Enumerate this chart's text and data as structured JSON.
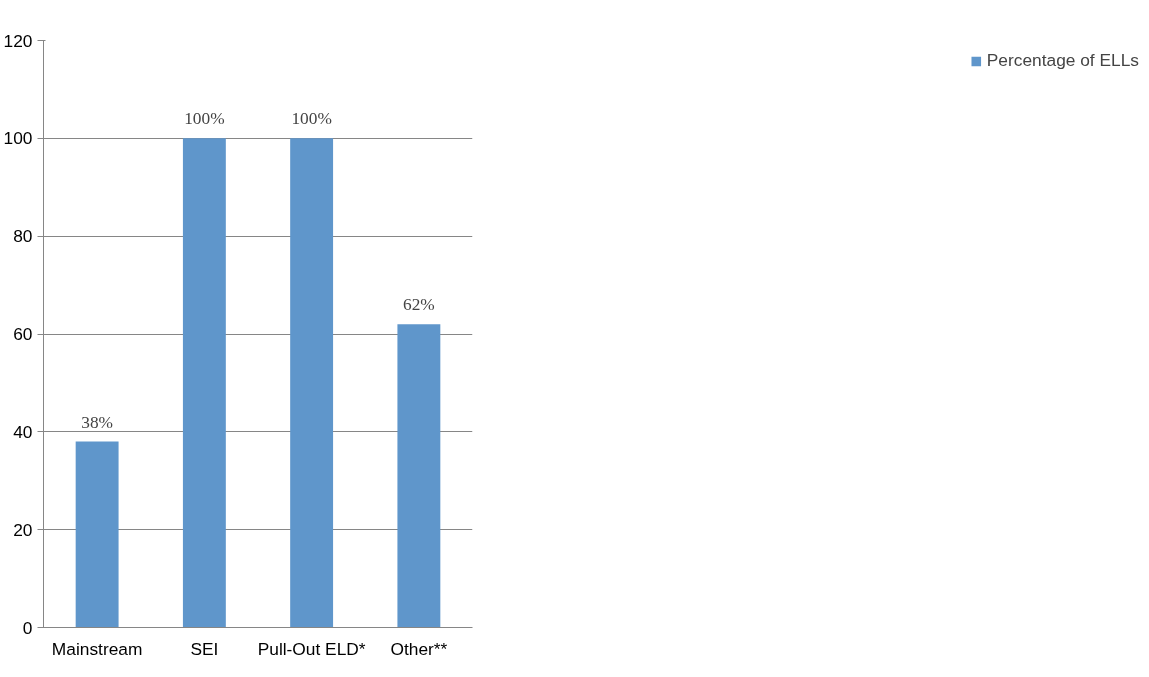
{
  "chart_data": {
    "type": "bar",
    "categories": [
      "Mainstream",
      "SEI",
      "Pull-Out ELD*",
      "Other**"
    ],
    "series": [
      {
        "name": "Percentage of ELLs",
        "color": "#5f96cb",
        "values": [
          38,
          100,
          100,
          62
        ],
        "value_labels": [
          "38%",
          "100%",
          "100%",
          "62%"
        ]
      }
    ],
    "ylim": [
      0,
      120
    ],
    "yticks": [
      0,
      20,
      40,
      60,
      80,
      100,
      120
    ],
    "grid": "y",
    "legend": "right"
  }
}
